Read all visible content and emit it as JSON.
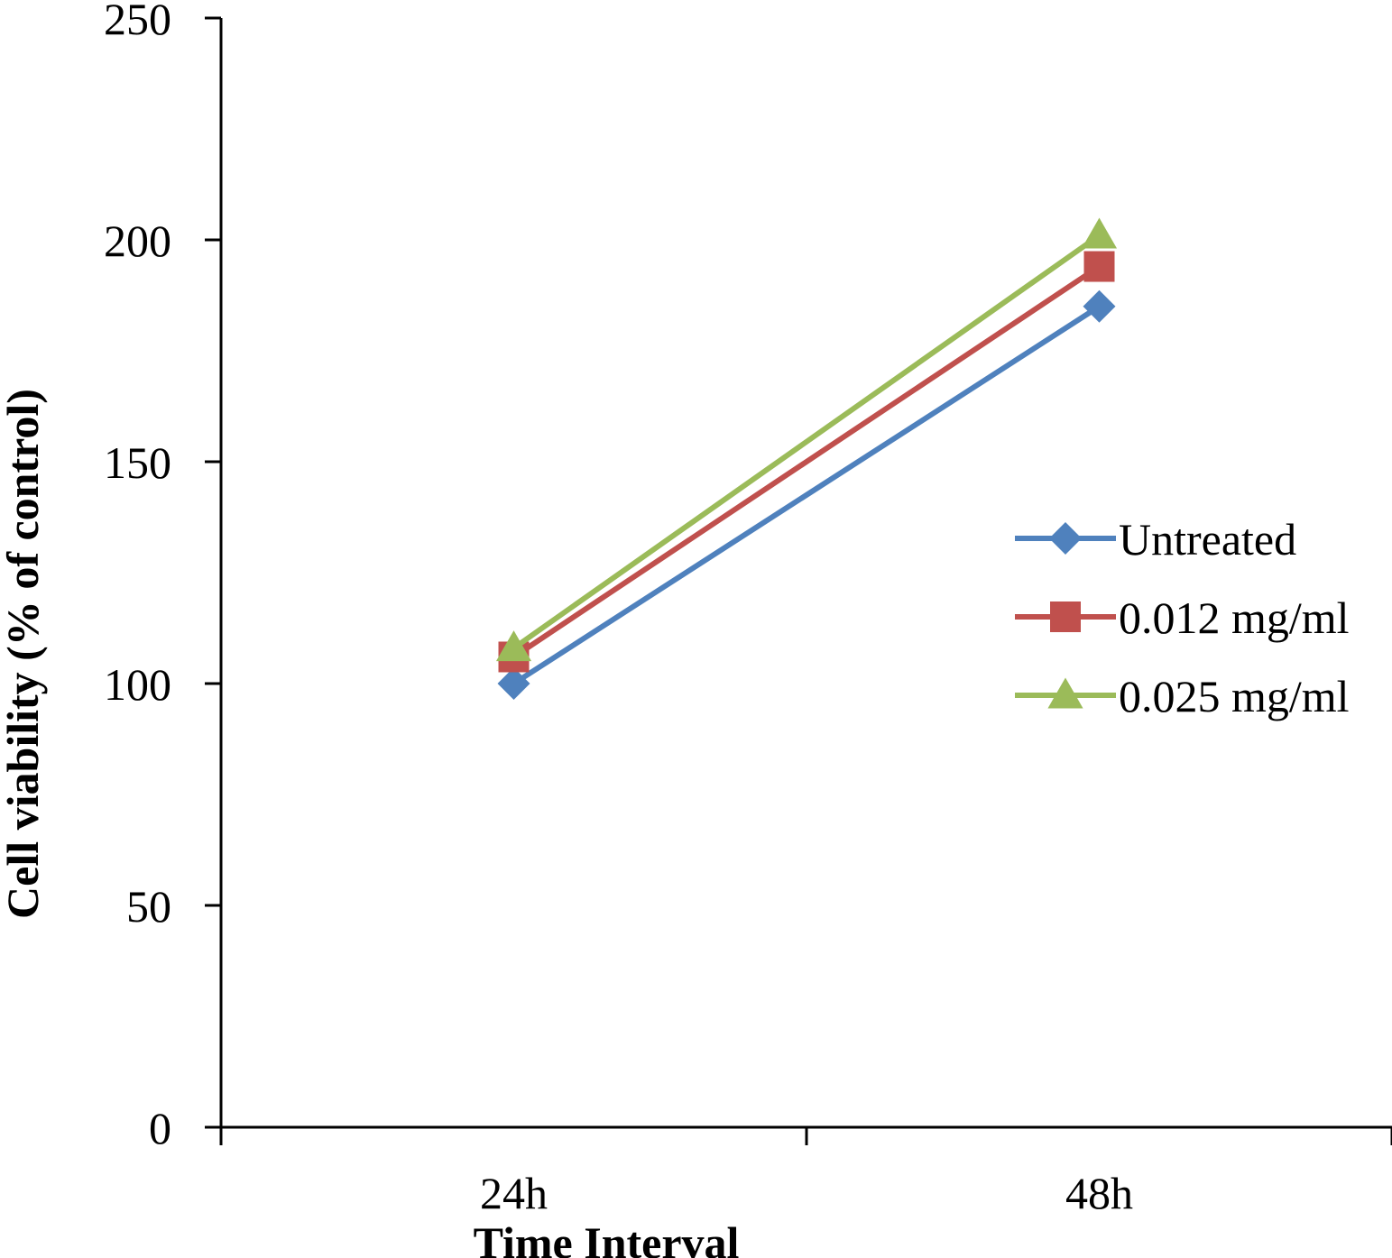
{
  "chart_data": {
    "type": "line",
    "title": "",
    "xlabel": "Time Interval",
    "ylabel": "Cell viability (% of control)",
    "categories": [
      "24h",
      "48h"
    ],
    "ylim": [
      0,
      250
    ],
    "yticks": [
      "0",
      "50",
      "100",
      "150",
      "200",
      "250"
    ],
    "grid": false,
    "legend_position": "right",
    "series": [
      {
        "name": "Untreated",
        "values": [
          100,
          185
        ],
        "color": "#4F81BD",
        "marker": "diamond"
      },
      {
        "name": "0.012 mg/ml",
        "values": [
          106,
          194
        ],
        "color": "#C0504D",
        "marker": "square"
      },
      {
        "name": "0.025 mg/ml",
        "values": [
          108,
          201
        ],
        "color": "#9BBB59",
        "marker": "triangle"
      }
    ]
  }
}
